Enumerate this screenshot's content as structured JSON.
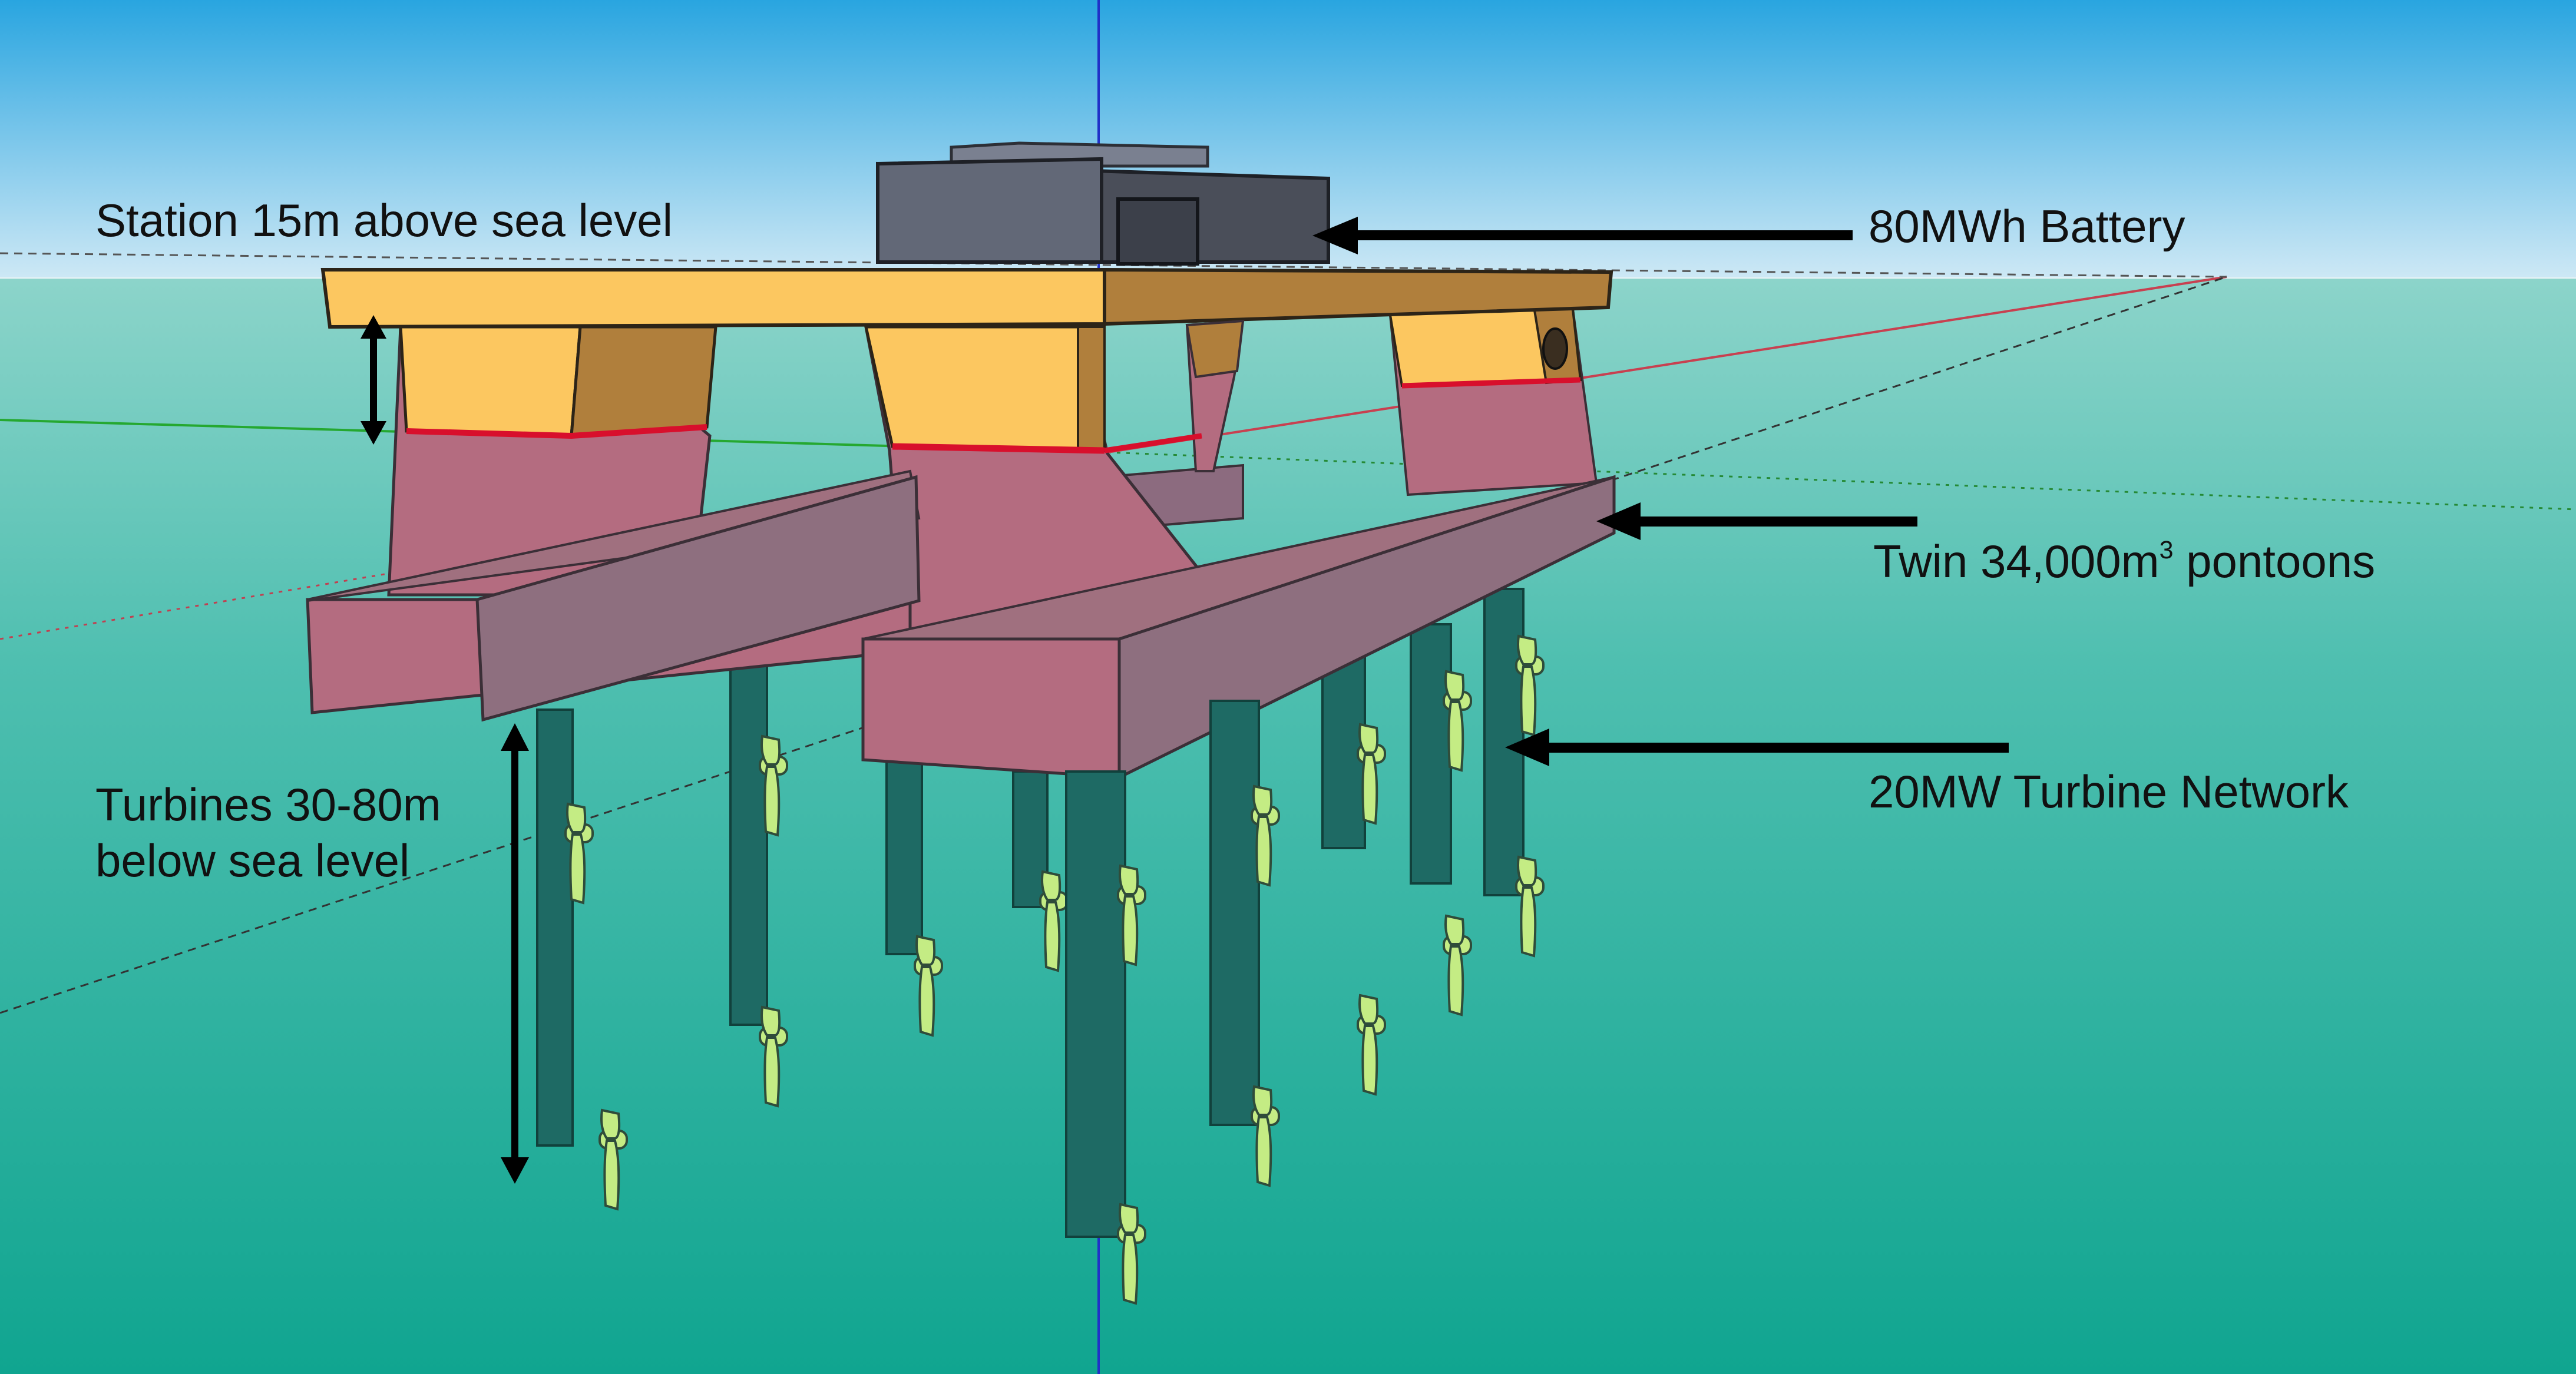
{
  "labels": {
    "station": "Station 15m above sea level",
    "battery": "80MWh Battery",
    "pontoons_prefix": "Twin 34,000m",
    "pontoons_superscript": "3",
    "pontoons_suffix": " pontoons",
    "network": "20MW Turbine Network",
    "turbines_line1": "Turbines 30-80m",
    "turbines_line2": "below sea level"
  },
  "colors": {
    "sky_top": "#29a5e0",
    "sky_bottom": "#cde8f5",
    "sea_top": "#8cd4ca",
    "sea_bottom": "#10a590",
    "deck": "#fcc760",
    "deck_shade": "#b07f3c",
    "submerged": "#b46c80",
    "pontoon_side": "#8e6f7f",
    "battery": "#5a5f6d",
    "turbine_column": "#1e6a64",
    "turbine_blade": "#c4ec84",
    "waterline": "#d80f2c",
    "arrow": "#000000"
  },
  "icons": [
    "arrow-left-icon",
    "double-arrow-icon"
  ]
}
